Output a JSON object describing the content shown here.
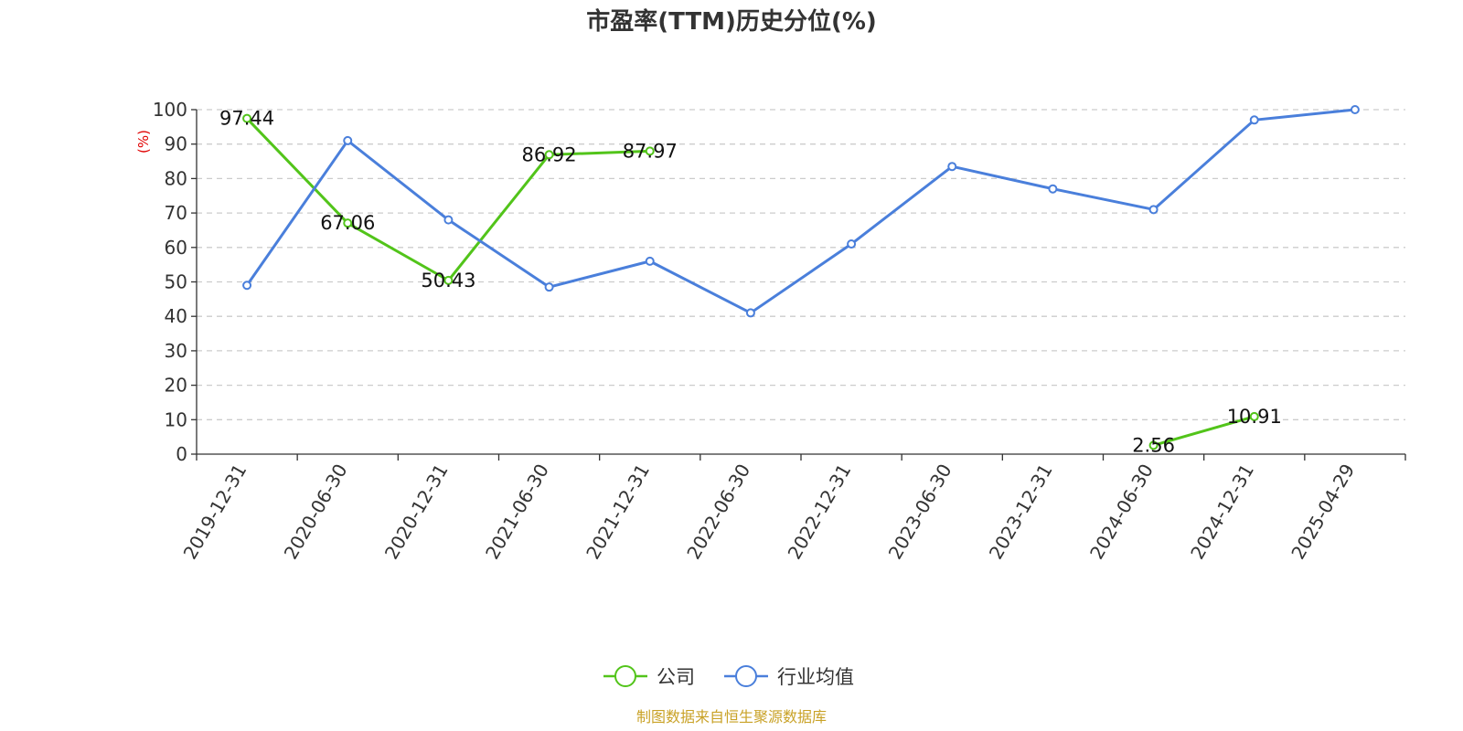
{
  "chart_data": {
    "type": "line",
    "title": "市盈率(TTM)历史分位(%)",
    "ylabel": "(%)",
    "ylim": [
      0,
      100
    ],
    "yticks": [
      0,
      10,
      20,
      30,
      40,
      50,
      60,
      70,
      80,
      90,
      100
    ],
    "grid": "horizontal-dashed",
    "legend_position": "bottom",
    "categories": [
      "2019-12-31",
      "2020-06-30",
      "2020-12-31",
      "2021-06-30",
      "2021-12-31",
      "2022-06-30",
      "2022-12-31",
      "2023-06-30",
      "2023-12-31",
      "2024-06-30",
      "2024-12-31",
      "2025-04-29"
    ],
    "series": [
      {
        "name": "公司",
        "color": "#52c41a",
        "show_labels": true,
        "values": [
          97.44,
          67.06,
          50.43,
          86.92,
          87.97,
          null,
          null,
          null,
          null,
          2.56,
          10.91,
          null
        ]
      },
      {
        "name": "行业均值",
        "color": "#4a7fdb",
        "show_labels": false,
        "values": [
          49,
          91,
          68,
          48.5,
          56,
          41,
          61,
          83.5,
          77,
          71,
          97,
          100
        ]
      }
    ]
  },
  "source": "制图数据来自恒生聚源数据库"
}
